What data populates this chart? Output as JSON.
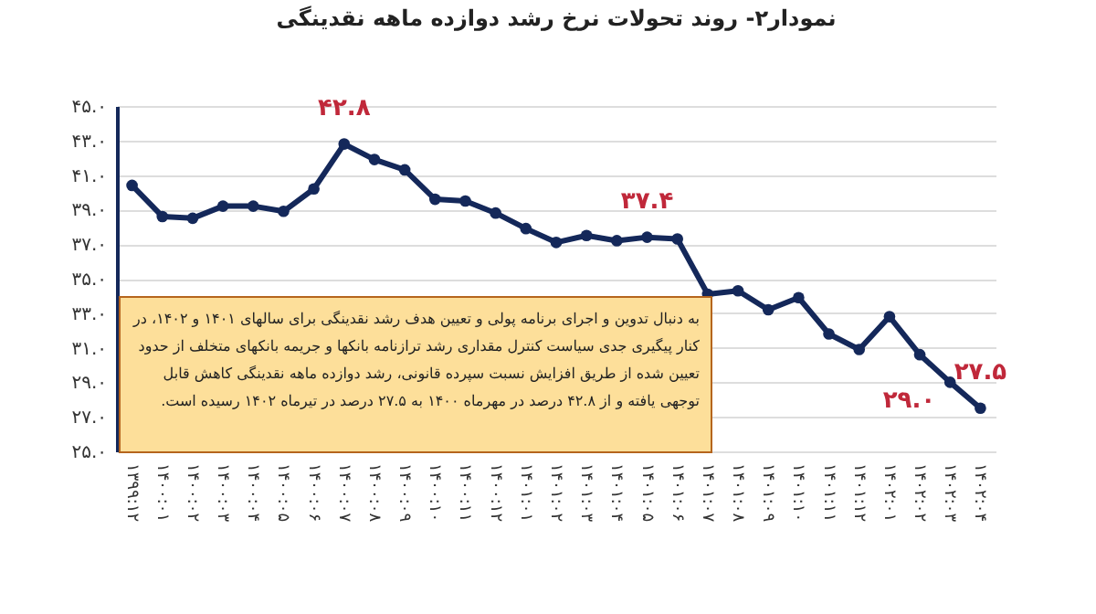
{
  "chart_data": {
    "type": "line",
    "title": "نمودار۲- روند تحولات نرخ رشد دوازده ماهه نقدینگی",
    "categories": [
      "۱۳۹۹:۱۲",
      "۱۴۰۰:۰۱",
      "۱۴۰۰:۰۲",
      "۱۴۰۰:۰۳",
      "۱۴۰۰:۰۴",
      "۱۴۰۰:۰۵",
      "۱۴۰۰:۰۶",
      "۱۴۰۰:۰۷",
      "۱۴۰۰:۰۸",
      "۱۴۰۰:۰۹",
      "۱۴۰۰:۱۰",
      "۱۴۰۰:۱۱",
      "۱۴۰۰:۱۲",
      "۱۴۰۱:۰۱",
      "۱۴۰۱:۰۲",
      "۱۴۰۱:۰۳",
      "۱۴۰۱:۰۴",
      "۱۴۰۱:۰۵",
      "۱۴۰۱:۰۶",
      "۱۴۰۱:۰۷",
      "۱۴۰۱:۰۸",
      "۱۴۰۱:۰۹",
      "۱۴۰۱:۱۰",
      "۱۴۰۱:۱۱",
      "۱۴۰۱:۱۲",
      "۱۴۰۲:۰۱",
      "۱۴۰۲:۰۲",
      "۱۴۰۲:۰۳",
      "۱۴۰۲:۰۴"
    ],
    "series": [
      {
        "color": "#14285a",
        "values": [
          40.4,
          38.6,
          38.5,
          39.2,
          39.2,
          38.9,
          40.2,
          42.8,
          41.9,
          41.3,
          39.6,
          39.5,
          38.8,
          37.9,
          37.1,
          37.5,
          37.2,
          37.4,
          37.3,
          34.1,
          34.3,
          33.2,
          33.9,
          31.8,
          30.9,
          32.8,
          30.6,
          29.0,
          27.5
        ],
        "value_labels": [
          null,
          null,
          null,
          null,
          null,
          null,
          null,
          "۴۲.۸",
          null,
          null,
          null,
          null,
          null,
          null,
          null,
          null,
          null,
          "۳۷.۴",
          null,
          null,
          null,
          null,
          null,
          null,
          null,
          null,
          null,
          "۲۹.۰",
          "۲۷.۵"
        ]
      }
    ],
    "ylim": [
      25,
      45
    ],
    "yticks": [
      {
        "value": 25,
        "label": "۲۵.۰"
      },
      {
        "value": 27,
        "label": "۲۷.۰"
      },
      {
        "value": 29,
        "label": "۲۹.۰"
      },
      {
        "value": 31,
        "label": "۳۱.۰"
      },
      {
        "value": 33,
        "label": "۳۳.۰"
      },
      {
        "value": 35,
        "label": "۳۵.۰"
      },
      {
        "value": 37,
        "label": "۳۷.۰"
      },
      {
        "value": 39,
        "label": "۳۹.۰"
      },
      {
        "value": 41,
        "label": "۴۱.۰"
      },
      {
        "value": 43,
        "label": "۴۳.۰"
      },
      {
        "value": 45,
        "label": "۴۵.۰"
      }
    ],
    "grid": "y",
    "marker": "circle",
    "line_style": "solid",
    "annotations": [
      "به دنبال تدوین و اجرای برنامه پولی و تعیین هدف رشد نقدینگی برای سالهای ۱۴۰۱ و ۱۴۰۲، در کنار پیگیری جدی سیاست کنترل مقداری رشد ترازنامه بانکها و جریمه بانکهای متخلف از حدود تعیین شده از طریق افزایش نسبت سپرده قانونی، رشد دوازده ماهه نقدینگی کاهش قابل توجهی یافته و از ۴۲.۸ درصد در مهرماه ۱۴۰۰ به ۲۷.۵ درصد در تیرماه ۱۴۰۲ رسیده است."
    ]
  }
}
